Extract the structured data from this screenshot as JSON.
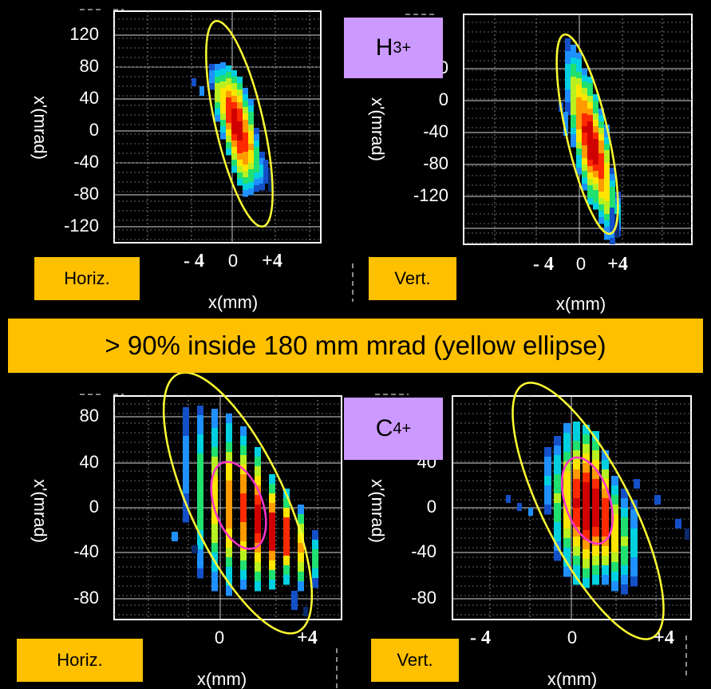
{
  "banner": "> 90% inside 180 mm mrad (yellow ellipse)",
  "colors": {
    "ellipse": "#ffff33",
    "inner_ellipse": "#ff33cc",
    "banner": "#ffc000",
    "ion_label": "#cc99ff"
  },
  "chart_data": [
    {
      "type": "heatmap",
      "panel": "top-left",
      "tag": "Horiz.",
      "ylabel": "x'(mrad)",
      "xlabel": "x(mm)",
      "yticks": [
        "120",
        "80",
        "40",
        "0",
        "-40",
        "-80",
        "-120"
      ],
      "xticks": [
        "- 4",
        "0",
        "+4"
      ],
      "beam_ellipse": {
        "center": [
          0,
          0
        ],
        "tilt": "negative",
        "slope": -22
      },
      "containment_ellipse": {
        "label": "180 mm mrad"
      }
    },
    {
      "type": "heatmap",
      "panel": "top-right",
      "tag": "Vert.",
      "ion": {
        "base": "H",
        "sub": "3",
        "sup": "+"
      },
      "ylabel": "x'(mrad)",
      "xlabel": "x(mm)",
      "yticks": [
        "40",
        "0",
        "-40",
        "-80",
        "-120"
      ],
      "xticks": [
        "- 4",
        "0",
        "+4"
      ],
      "beam_ellipse": {
        "center": [
          0,
          0
        ],
        "tilt": "negative",
        "slope": -24
      },
      "containment_ellipse": {
        "label": "180 mm mrad"
      }
    },
    {
      "type": "heatmap",
      "panel": "bottom-left",
      "tag": "Horiz.",
      "ylabel": "x'(mrad)",
      "xlabel": "x(mm)",
      "yticks": [
        "80",
        "40",
        "0",
        "-40",
        "-80"
      ],
      "xticks": [
        "0",
        "+4"
      ],
      "beam_ellipse": {
        "center": [
          1.5,
          0
        ],
        "tilt": "negative"
      },
      "containment_ellipse": {
        "label": "180 mm mrad"
      }
    },
    {
      "type": "heatmap",
      "panel": "bottom-right",
      "tag": "Vert.",
      "ion": {
        "base": "C",
        "sup": "4+"
      },
      "ylabel": "x'(mrad)",
      "xlabel": "x(mm)",
      "yticks": [
        "40",
        "0",
        "-40",
        "-80"
      ],
      "xticks": [
        "- 4",
        "0",
        "+4"
      ],
      "beam_ellipse": {
        "center": [
          0.5,
          -5
        ],
        "tilt": "negative"
      },
      "containment_ellipse": {
        "label": "180 mm mrad"
      }
    }
  ],
  "panels": {
    "tl": {
      "tag": "Horiz.",
      "xlabel": "x(mm)",
      "ylabel": "x'(mrad)"
    },
    "tr": {
      "tag": "Vert.",
      "xlabel": "x(mm)",
      "ylabel": "x'(mrad)"
    },
    "bl": {
      "tag": "Horiz.",
      "xlabel": "x(mm)",
      "ylabel": "x'(mrad)"
    },
    "br": {
      "tag": "Vert.",
      "xlabel": "x(mm)",
      "ylabel": "x'(mrad)"
    }
  },
  "ions": {
    "h3": {
      "base": "H",
      "sub": "3",
      "sup": "+"
    },
    "c4": {
      "base": "C",
      "sup": "4+"
    }
  }
}
